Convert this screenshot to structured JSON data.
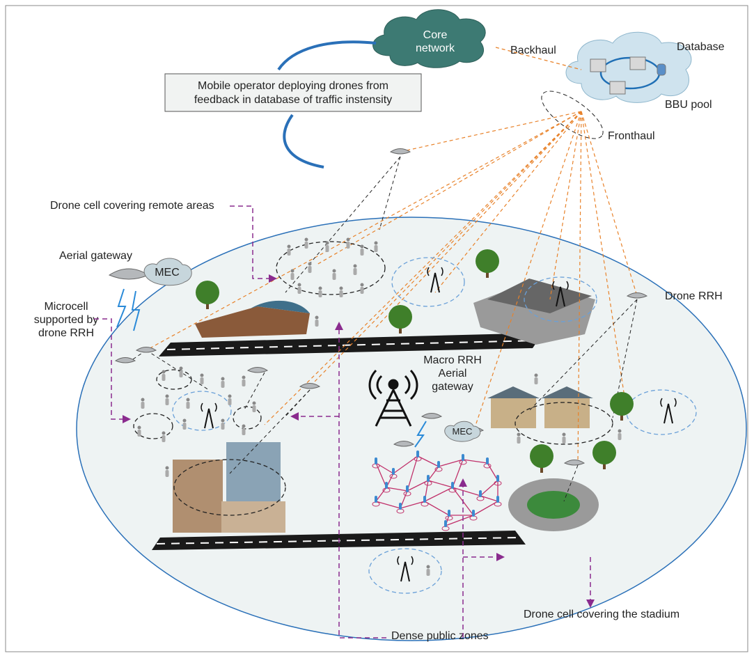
{
  "core_network": [
    "Core",
    "network"
  ],
  "backhaul": "Backhaul",
  "database": "Database",
  "bbu_pool": "BBU pool",
  "fronthaul": "Fronthaul",
  "operator_box": [
    "Mobile operator deploying drones from",
    "feedback in database of traffic instensity"
  ],
  "remote_areas": "Drone cell covering remote areas",
  "aerial_gateway": "Aerial gateway",
  "mec_left": "MEC",
  "microcell": [
    "Microcell",
    "supported by",
    "drone RRH"
  ],
  "drone_rrh": "Drone RRH",
  "macro_rrh": [
    "Macro RRH",
    "Aerial",
    "gateway"
  ],
  "mec_center": "MEC",
  "stadium": "Drone cell covering the stadium",
  "dense_zones": "Dense public zones"
}
